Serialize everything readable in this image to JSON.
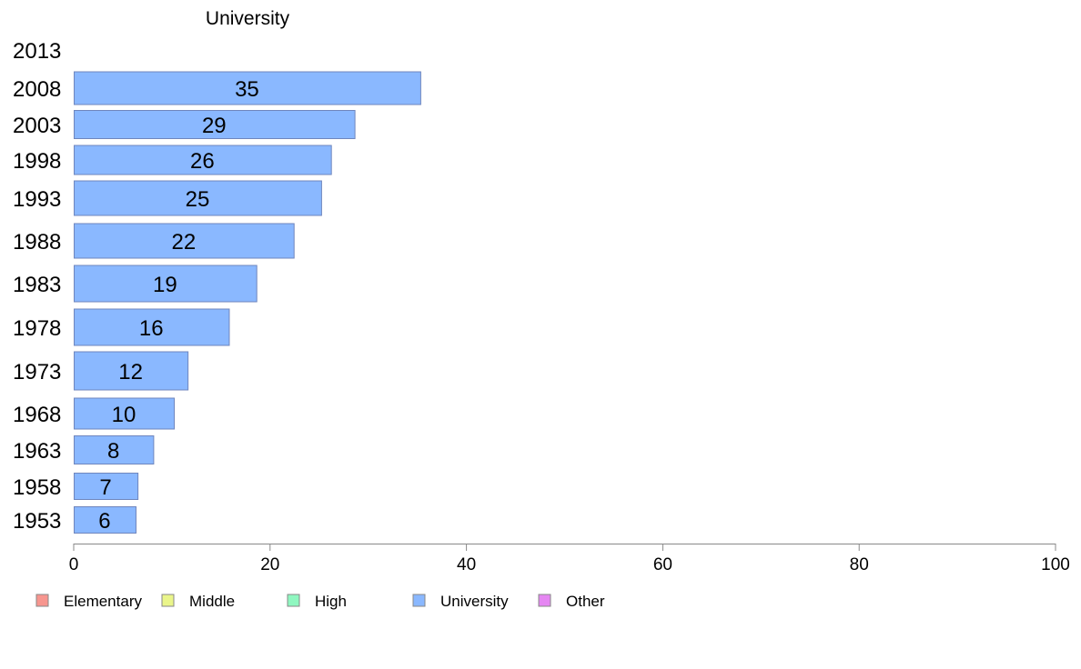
{
  "chart_data": {
    "type": "bar",
    "orientation": "horizontal",
    "title": "University",
    "categories": [
      "2013",
      "2008",
      "2003",
      "1998",
      "1993",
      "1988",
      "1983",
      "1978",
      "1973",
      "1968",
      "1963",
      "1958",
      "1953"
    ],
    "series": [
      {
        "name": "University",
        "color": "#8ab8ff",
        "values": [
          null,
          35.3,
          28.6,
          26.2,
          25.2,
          22.4,
          18.6,
          15.8,
          11.6,
          10.2,
          8.1,
          6.5,
          6.3
        ],
        "labels": [
          "",
          "35",
          "29",
          "26",
          "25",
          "22",
          "19",
          "16",
          "12",
          "10",
          "8",
          "7",
          "6"
        ]
      }
    ],
    "xlim": [
      0,
      100
    ],
    "xticks": [
      0,
      20,
      40,
      60,
      80,
      100
    ],
    "grid": false,
    "legend": {
      "placement": "bottom",
      "entries": [
        {
          "name": "Elementary",
          "color": "#f7968f"
        },
        {
          "name": "Middle",
          "color": "#eaf58a"
        },
        {
          "name": "High",
          "color": "#8ff7c0"
        },
        {
          "name": "University",
          "color": "#8ab8ff"
        },
        {
          "name": "Other",
          "color": "#e586f2"
        }
      ]
    }
  }
}
